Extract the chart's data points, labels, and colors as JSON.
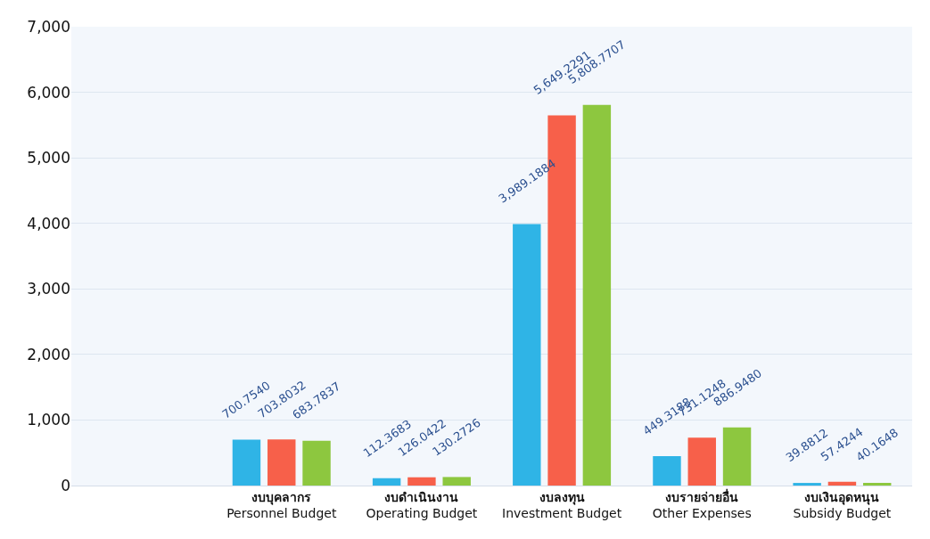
{
  "chart_data": {
    "type": "bar",
    "categories": [
      null,
      "งบบุคลากร\nPersonnel Budget",
      "งบดำเนินงาน\nOperating Budget",
      "งบลงทุน\nInvestment Budget",
      "งบรายจ่ายอื่น\nOther Expenses",
      "งบเงินอุดหนุน\nSubsidy Budget"
    ],
    "series": [
      {
        "color": "#2fb4e6",
        "values": [
          null,
          700.754,
          112.3683,
          3989.1884,
          449.3188,
          39.8812
        ],
        "value_labels": [
          null,
          "700.7540",
          "112.3683",
          "3,989.1884",
          "449.3188",
          "39.8812"
        ]
      },
      {
        "color": "#f7604a",
        "values": [
          null,
          703.8032,
          126.0422,
          5649.2291,
          731.1248,
          57.4244
        ],
        "value_labels": [
          null,
          "703.8032",
          "126.0422",
          "5,649.2291",
          "731.1248",
          "57.4244"
        ]
      },
      {
        "color": "#8dc73f",
        "values": [
          null,
          683.7837,
          130.2726,
          5808.7707,
          886.948,
          40.1648
        ],
        "value_labels": [
          null,
          "683.7837",
          "130.2726",
          "5,808.7707",
          "886.9480",
          "40.1648"
        ]
      }
    ],
    "ylim": [
      0,
      7000
    ],
    "yticks": [
      {
        "value": 0,
        "label": "0"
      },
      {
        "value": 1000,
        "label": "1,000"
      },
      {
        "value": 2000,
        "label": "2,000"
      },
      {
        "value": 3000,
        "label": "3,000"
      },
      {
        "value": 4000,
        "label": "4,000"
      },
      {
        "value": 5000,
        "label": "5,000"
      },
      {
        "value": 6000,
        "label": "6,000"
      },
      {
        "value": 7000,
        "label": "7,000"
      }
    ],
    "grid": "y"
  }
}
